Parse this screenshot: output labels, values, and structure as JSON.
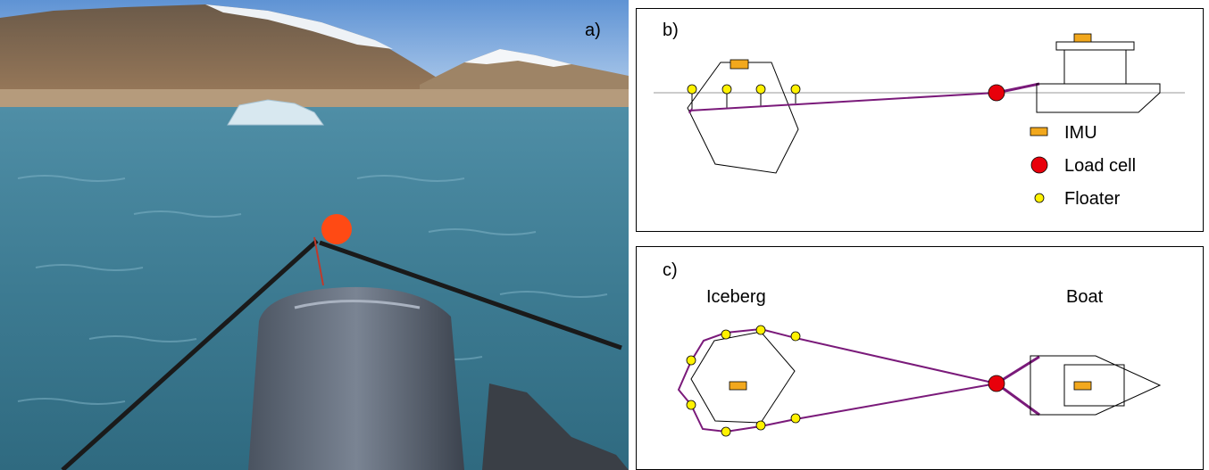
{
  "panels": {
    "a": {
      "label": "a)"
    },
    "b": {
      "label": "b)"
    },
    "c": {
      "label": "c)"
    }
  },
  "legend": {
    "imu": "IMU",
    "load_cell": "Load cell",
    "floater": "Floater"
  },
  "plan_view": {
    "iceberg_label": "Iceberg",
    "boat_label": "Boat"
  },
  "colors": {
    "imu": "#f2a81d",
    "load_cell": "#e8000b",
    "floater": "#fff200",
    "rope": "#7a1a7a",
    "outline": "#000000",
    "waterline": "#bbbbbb"
  }
}
